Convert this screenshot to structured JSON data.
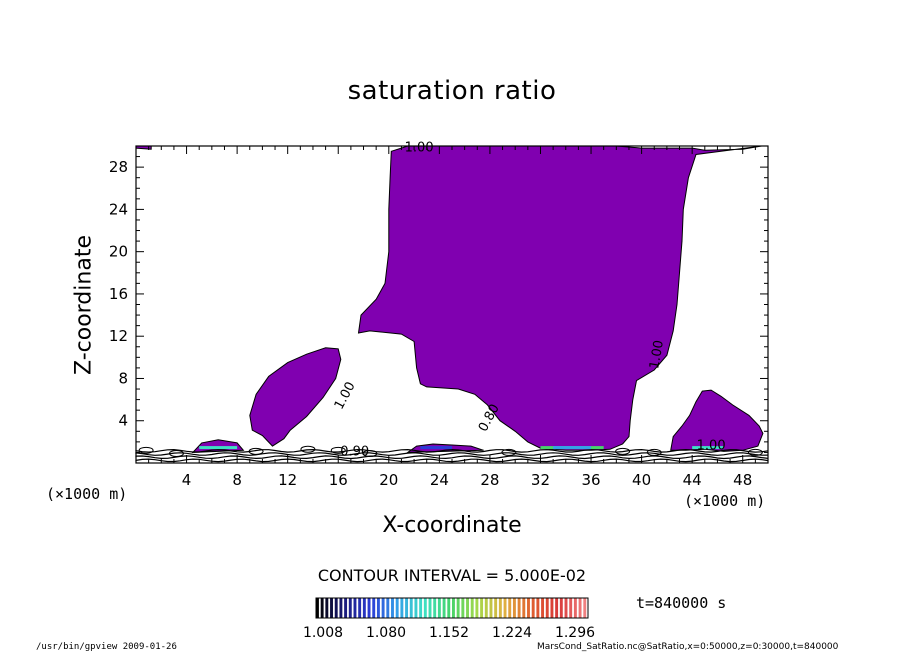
{
  "chart_data": {
    "type": "heatmap",
    "title": "saturation ratio",
    "xlabel": "X-coordinate",
    "ylabel": "Z-coordinate",
    "x_unit": "(×1000 m)",
    "z_unit": "(×1000 m)",
    "xlim": [
      0,
      50
    ],
    "ylim": [
      0,
      30
    ],
    "x_ticks": [
      4,
      8,
      12,
      16,
      20,
      24,
      28,
      32,
      36,
      40,
      44,
      48
    ],
    "y_ticks": [
      4,
      8,
      12,
      16,
      20,
      24,
      28
    ],
    "x_tick_labels": [
      "4",
      "8",
      "12",
      "16",
      "20",
      "24",
      "28",
      "32",
      "36",
      "40",
      "44",
      "48"
    ],
    "y_tick_labels": [
      "4",
      "8",
      "12",
      "16",
      "20",
      "24",
      "28"
    ],
    "contour_labels": [
      "1.00",
      "1.00",
      "1.00",
      "0.80",
      "1.00",
      "0.90"
    ],
    "contour_interval_text": "CONTOUR INTERVAL = 5.000E-02",
    "colorbar": {
      "ticks": [
        "1.008",
        "1.080",
        "1.152",
        "1.224",
        "1.296"
      ],
      "min": 1.008,
      "max": 1.296,
      "colors": [
        "#000000",
        "#1a1a7a",
        "#2b3bd6",
        "#34a0e8",
        "#3de0c4",
        "#46d46a",
        "#a6d84a",
        "#e0b040",
        "#e06030",
        "#d83838",
        "#f08080"
      ]
    },
    "fill_color": "#8000b0",
    "regions": [
      {
        "name": "upper-cap-left",
        "points": [
          [
            0,
            30
          ],
          [
            1.2,
            30
          ],
          [
            1.2,
            29.7
          ],
          [
            0,
            29.8
          ]
        ]
      },
      {
        "name": "main-column",
        "points": [
          [
            20.2,
            29.5
          ],
          [
            21.5,
            30
          ],
          [
            28,
            30
          ],
          [
            33,
            30
          ],
          [
            38,
            30
          ],
          [
            40,
            29.8
          ],
          [
            44,
            29.8
          ],
          [
            45,
            29.6
          ],
          [
            48,
            29.7
          ],
          [
            49.5,
            30
          ],
          [
            44.3,
            29.2
          ],
          [
            43.7,
            27
          ],
          [
            43.3,
            24
          ],
          [
            43.2,
            21
          ],
          [
            43,
            18
          ],
          [
            42.8,
            15
          ],
          [
            42.5,
            12.5
          ],
          [
            42,
            10.2
          ],
          [
            41,
            8.8
          ],
          [
            39.6,
            7.8
          ],
          [
            39.3,
            6
          ],
          [
            39.1,
            4
          ],
          [
            39,
            2.5
          ],
          [
            38.5,
            1.8
          ],
          [
            37.5,
            1.3
          ],
          [
            36,
            1.2
          ],
          [
            34,
            1.2
          ],
          [
            32,
            1.4
          ],
          [
            31,
            2
          ],
          [
            30,
            3
          ],
          [
            28.8,
            4
          ],
          [
            27.8,
            5.5
          ],
          [
            26.8,
            6.5
          ],
          [
            25.5,
            7
          ],
          [
            23,
            7.2
          ],
          [
            22.5,
            7.5
          ],
          [
            22.2,
            9
          ],
          [
            22,
            11.5
          ],
          [
            21,
            12.2
          ],
          [
            18.5,
            12.5
          ],
          [
            17.6,
            12.3
          ],
          [
            17.8,
            14
          ],
          [
            19,
            15.5
          ],
          [
            19.7,
            17
          ],
          [
            20,
            20
          ],
          [
            20,
            24
          ],
          [
            20.1,
            27
          ],
          [
            20.2,
            29.5
          ]
        ]
      },
      {
        "name": "left-blob",
        "points": [
          [
            10.8,
            1.6
          ],
          [
            10,
            2.6
          ],
          [
            9.2,
            3.1
          ],
          [
            9,
            4.5
          ],
          [
            9.5,
            6.5
          ],
          [
            10.5,
            8.2
          ],
          [
            12,
            9.5
          ],
          [
            13.5,
            10.3
          ],
          [
            15,
            10.9
          ],
          [
            16,
            10.8
          ],
          [
            16.2,
            9.8
          ],
          [
            15.8,
            8
          ],
          [
            14.8,
            6.2
          ],
          [
            13.5,
            4.4
          ],
          [
            12.2,
            3.1
          ],
          [
            11.7,
            2.3
          ],
          [
            10.8,
            1.6
          ]
        ]
      },
      {
        "name": "right-blob",
        "points": [
          [
            42.3,
            1.2
          ],
          [
            42.5,
            2.5
          ],
          [
            43.2,
            3.5
          ],
          [
            43.8,
            4.5
          ],
          [
            44.3,
            5.8
          ],
          [
            44.8,
            6.8
          ],
          [
            45.5,
            6.9
          ],
          [
            46.3,
            6.3
          ],
          [
            47.2,
            5.5
          ],
          [
            48.5,
            4.5
          ],
          [
            49.3,
            3.5
          ],
          [
            49.6,
            2.8
          ],
          [
            49.2,
            1.6
          ],
          [
            48,
            1.2
          ],
          [
            46.5,
            1.1
          ],
          [
            45,
            1.3
          ],
          [
            43.5,
            1.2
          ],
          [
            42.3,
            1.2
          ]
        ]
      },
      {
        "name": "surface-strip-1",
        "points": [
          [
            4.5,
            1.0
          ],
          [
            5.2,
            1.9
          ],
          [
            6.5,
            2.2
          ],
          [
            8,
            1.9
          ],
          [
            8.5,
            1.2
          ]
        ]
      },
      {
        "name": "surface-strip-2",
        "points": [
          [
            21.5,
            1.0
          ],
          [
            22.2,
            1.6
          ],
          [
            23.5,
            1.8
          ],
          [
            25,
            1.7
          ],
          [
            26.5,
            1.6
          ],
          [
            27.5,
            1.2
          ]
        ]
      }
    ]
  },
  "time_label": "t=840000 s",
  "footer": {
    "left": "/usr/bin/gpview   2009-01-26",
    "right": "MarsCond_SatRatio.nc@SatRatio,x=0:50000,z=0:30000,t=840000"
  }
}
